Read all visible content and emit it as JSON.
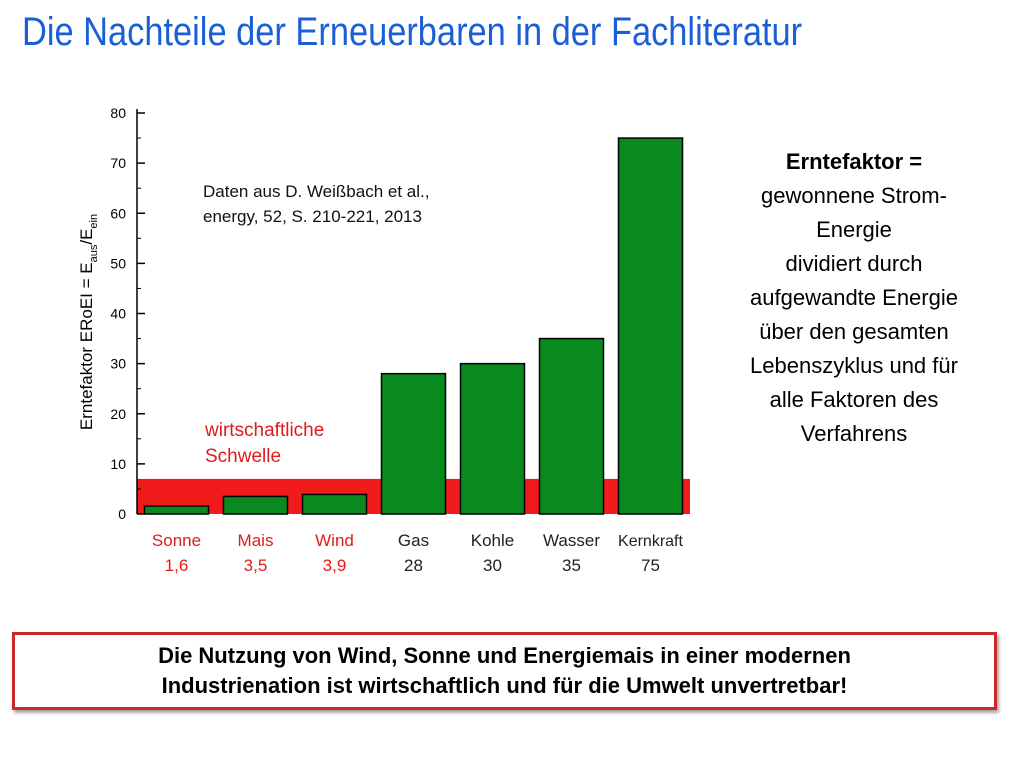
{
  "title": "Die Nachteile der Erneuerbaren in der Fachliteratur",
  "definition": {
    "heading": "Erntefaktor =",
    "lines": [
      "gewonnene Strom-",
      "Energie",
      "dividiert durch",
      "aufgewandte Energie",
      "über den gesamten",
      "Lebenszyklus und für",
      "alle Faktoren des",
      "Verfahrens"
    ]
  },
  "conclusion": {
    "line1": "Die Nutzung von Wind, Sonne und Energiemais in einer modernen",
    "line2": "Industrienation ist wirtschaftlich und für die Umwelt unvertretbar!"
  },
  "colors": {
    "bar": "#0a8a1e",
    "threshold": "#f21b1b",
    "highlight_label": "#e01b1b",
    "title": "#1a5fd6"
  },
  "chart_data": {
    "type": "bar",
    "ylabel_main": "Erntefaktor ERoEI = E",
    "ylabel_sub1": "aus",
    "ylabel_mid": "/E",
    "ylabel_sub2": "ein",
    "ylim": [
      0,
      80
    ],
    "yticks": [
      0,
      10,
      20,
      30,
      40,
      50,
      60,
      70,
      80
    ],
    "categories": [
      "Sonne",
      "Mais",
      "Wind",
      "Gas",
      "Kohle",
      "Wasser",
      "Kernkraft"
    ],
    "value_labels": [
      "1,6",
      "3,5",
      "3,9",
      "28",
      "30",
      "35",
      "75"
    ],
    "values": [
      1.6,
      3.5,
      3.9,
      28,
      30,
      35,
      75
    ],
    "below_threshold": [
      true,
      true,
      true,
      false,
      false,
      false,
      false
    ],
    "threshold_value": 7,
    "threshold_label_line1": "wirtschaftliche",
    "threshold_label_line2": "Schwelle",
    "source_line1": "Daten aus D. Weißbach et al.,",
    "source_line2": "energy, 52, S. 210-221, 2013"
  }
}
